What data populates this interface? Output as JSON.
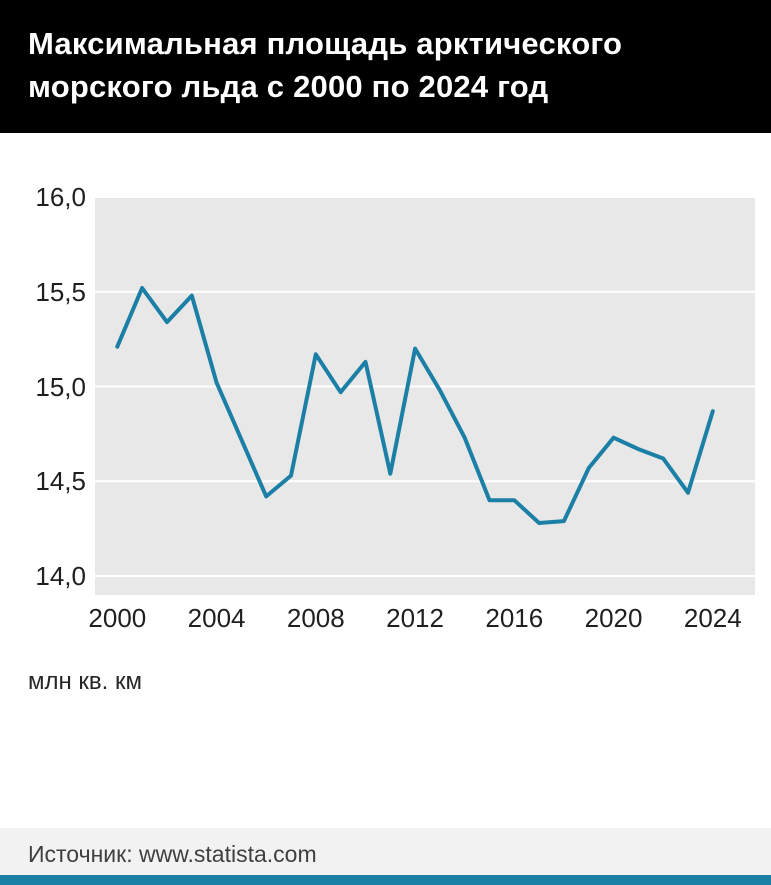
{
  "header": {
    "title_line1": "Максимальная площадь арктического",
    "title_line2": "морского льда с 2000 по 2024 год"
  },
  "footer": {
    "source": "Источник: www.statista.com"
  },
  "theme": {
    "header_background": "#000000",
    "line_color": "#1b7fa6",
    "accent_color": "#1b7fa6",
    "plot_background": "#e8e8e8",
    "grid_color": "#ffffff"
  },
  "chart_data": {
    "type": "line",
    "title": "Максимальная площадь арктического морского льда с 2000 по 2024 год",
    "xlabel": "",
    "ylabel": "млн кв. км",
    "x": [
      2000,
      2001,
      2002,
      2003,
      2004,
      2005,
      2006,
      2007,
      2008,
      2009,
      2010,
      2011,
      2012,
      2013,
      2014,
      2015,
      2016,
      2017,
      2018,
      2019,
      2020,
      2021,
      2022,
      2023,
      2024
    ],
    "values": [
      15.21,
      15.52,
      15.34,
      15.48,
      15.02,
      14.72,
      14.42,
      14.53,
      15.17,
      14.97,
      15.13,
      14.54,
      15.2,
      14.98,
      14.73,
      14.4,
      14.4,
      14.28,
      14.29,
      14.57,
      14.73,
      14.67,
      14.62,
      14.44,
      14.87
    ],
    "xlim": [
      1999.1,
      2025.7
    ],
    "ylim": [
      13.9,
      16.0
    ],
    "grid": true,
    "legend": false,
    "line_color": "#1b7fa6",
    "y_ticks": [
      {
        "value": 16.0,
        "label": "16,0"
      },
      {
        "value": 15.5,
        "label": "15,5"
      },
      {
        "value": 15.0,
        "label": "15,0"
      },
      {
        "value": 14.5,
        "label": "14,5"
      },
      {
        "value": 14.0,
        "label": "14,0"
      }
    ],
    "x_ticks": [
      {
        "value": 2000,
        "label": "2000"
      },
      {
        "value": 2004,
        "label": "2004"
      },
      {
        "value": 2008,
        "label": "2008"
      },
      {
        "value": 2012,
        "label": "2012"
      },
      {
        "value": 2016,
        "label": "2016"
      },
      {
        "value": 2020,
        "label": "2020"
      },
      {
        "value": 2024,
        "label": "2024"
      }
    ]
  }
}
